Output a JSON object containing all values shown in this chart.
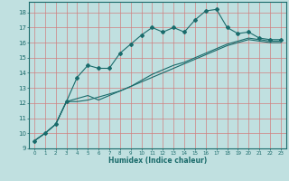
{
  "xlabel": "Humidex (Indice chaleur)",
  "bg_color": "#c0e0e0",
  "grid_color": "#d08080",
  "line_color": "#1a6b6b",
  "xlim": [
    -0.5,
    23.5
  ],
  "ylim": [
    9,
    18.7
  ],
  "xticks": [
    0,
    1,
    2,
    3,
    4,
    5,
    6,
    7,
    8,
    9,
    10,
    11,
    12,
    13,
    14,
    15,
    16,
    17,
    18,
    19,
    20,
    21,
    22,
    23
  ],
  "yticks": [
    9,
    10,
    11,
    12,
    13,
    14,
    15,
    16,
    17,
    18
  ],
  "series1_x": [
    0,
    1,
    2,
    3,
    4,
    5,
    6,
    7,
    8,
    9,
    10,
    11,
    12,
    13,
    14,
    15,
    16,
    17,
    18,
    19,
    20,
    21,
    22,
    23
  ],
  "series1_y": [
    9.5,
    10.0,
    10.6,
    12.1,
    13.7,
    14.5,
    14.3,
    14.3,
    15.3,
    15.9,
    16.5,
    17.0,
    16.7,
    17.0,
    16.7,
    17.5,
    18.1,
    18.2,
    17.0,
    16.6,
    16.7,
    16.3,
    16.2,
    16.2
  ],
  "series2_x": [
    0,
    1,
    2,
    3,
    4,
    5,
    6,
    7,
    8,
    9,
    10,
    11,
    12,
    13,
    14,
    15,
    16,
    17,
    18,
    19,
    20,
    21,
    22,
    23
  ],
  "series2_y": [
    9.5,
    10.0,
    10.6,
    12.1,
    12.3,
    12.5,
    12.2,
    12.5,
    12.8,
    13.1,
    13.5,
    13.9,
    14.2,
    14.5,
    14.7,
    15.0,
    15.3,
    15.6,
    15.9,
    16.1,
    16.3,
    16.2,
    16.1,
    16.1
  ],
  "series3_x": [
    0,
    1,
    2,
    3,
    4,
    5,
    6,
    7,
    8,
    9,
    10,
    11,
    12,
    13,
    14,
    15,
    16,
    17,
    18,
    19,
    20,
    21,
    22,
    23
  ],
  "series3_y": [
    9.5,
    10.0,
    10.6,
    12.1,
    12.1,
    12.2,
    12.4,
    12.6,
    12.8,
    13.1,
    13.4,
    13.7,
    14.0,
    14.3,
    14.6,
    14.9,
    15.2,
    15.5,
    15.8,
    16.0,
    16.2,
    16.1,
    16.0,
    16.0
  ]
}
